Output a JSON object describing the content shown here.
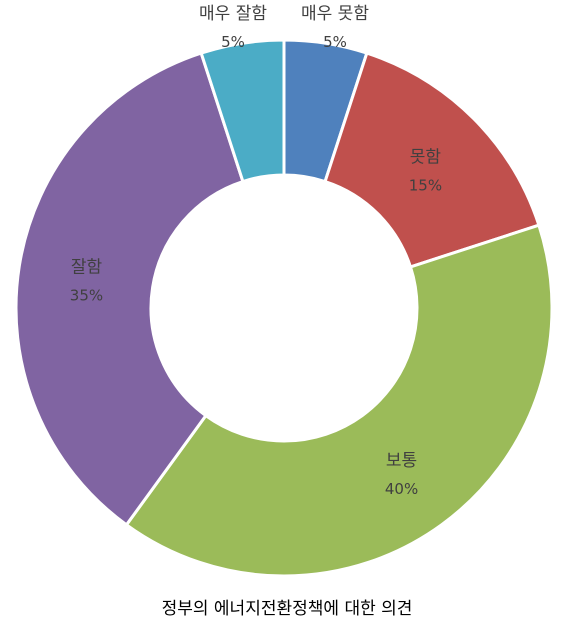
{
  "chart_data": {
    "type": "pie",
    "donut": true,
    "title": "정부의 에너지전환정책에 대한 의견",
    "categories": [
      "매우 못함",
      "못함",
      "보통",
      "잘함",
      "매우 잘함"
    ],
    "values": [
      5,
      15,
      40,
      35,
      5
    ],
    "value_labels": [
      "5%",
      "15%",
      "40%",
      "35%",
      "5%"
    ],
    "colors": [
      "#4F81BD",
      "#C0504D",
      "#9BBB59",
      "#8064A2",
      "#4BACC6"
    ],
    "legend": "none",
    "data_labels": "on-slice"
  }
}
